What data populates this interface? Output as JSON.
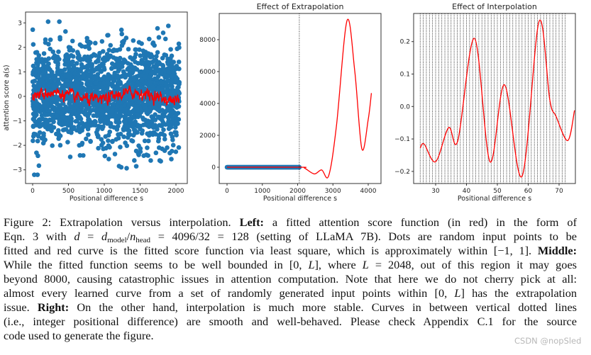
{
  "chart_data": [
    {
      "type": "scatter",
      "title": "",
      "xlabel": "Positional difference s",
      "ylabel": "attention score a(s)",
      "xlim": [
        -100,
        2150
      ],
      "ylim": [
        -3.5,
        3.3
      ],
      "xticks": [
        "0",
        "500",
        "1000",
        "1500",
        "2000"
      ],
      "yticks": [
        "−3",
        "−2",
        "−1",
        "0",
        "1",
        "2",
        "3"
      ],
      "grid": false,
      "series": [
        {
          "kind": "scatter",
          "color": "#1f77b4",
          "x_range": [
            0,
            2048
          ],
          "y_mean": 0,
          "y_std": 1,
          "y_extent": [
            -3.2,
            3.05
          ]
        },
        {
          "kind": "line",
          "color": "#ff0000",
          "x_range": [
            0,
            2048
          ],
          "y_extent": [
            -0.6,
            0.65
          ]
        }
      ]
    },
    {
      "type": "line",
      "title": "Effect of Extrapolation",
      "xlabel": "Positional difference s",
      "ylabel": "",
      "xlim": [
        -200,
        4200
      ],
      "ylim": [
        -1000,
        9800
      ],
      "xticks": [
        "0",
        "1000",
        "2000",
        "3000",
        "4000"
      ],
      "yticks": [
        "0",
        "2000",
        "4000",
        "6000",
        "8000"
      ],
      "grid": false,
      "vline": 2048,
      "series": [
        {
          "kind": "scatter",
          "color": "#1f77b4",
          "x_range": [
            0,
            2048
          ],
          "y": 0
        },
        {
          "kind": "line",
          "color": "#ff0000",
          "x": [
            0,
            2048,
            2200,
            2470,
            2680,
            2880,
            3100,
            3400,
            3620,
            3820,
            4000,
            4090
          ],
          "y": [
            0,
            0,
            -60,
            -420,
            -170,
            -530,
            2600,
            9200,
            6000,
            1150,
            3000,
            4650
          ]
        }
      ]
    },
    {
      "type": "line",
      "title": "Effect of Interpolation",
      "xlabel": "Positional difference s",
      "ylabel": "",
      "xlim": [
        23,
        77
      ],
      "ylim": [
        -0.24,
        0.28
      ],
      "xticks": [
        "30",
        "40",
        "50",
        "60",
        "70"
      ],
      "yticks": [
        "−0.2",
        "−0.1",
        "0.0",
        "0.1",
        "0.2"
      ],
      "grid": false,
      "vlines_integer_range": [
        25,
        72
      ],
      "series": [
        {
          "kind": "line",
          "color": "#ff0000",
          "x": [
            25,
            26.3,
            30,
            34.2,
            37.2,
            42.6,
            47.6,
            52.3,
            58,
            63.5,
            67,
            69,
            72.8,
            75
          ],
          "y": [
            -0.128,
            -0.116,
            -0.17,
            -0.065,
            -0.105,
            0.21,
            -0.17,
            0.067,
            -0.215,
            0.262,
            0.02,
            -0.03,
            -0.105,
            -0.012
          ]
        }
      ]
    }
  ],
  "caption": {
    "lines": [
      [
        {
          "t": "Figure 2:  Extrapolation versus interpolation.  ",
          "s": ""
        },
        {
          "t": "Left:",
          "s": "b"
        },
        {
          "t": " a fitted attention score function (in red) in the form of",
          "s": ""
        }
      ],
      [
        {
          "t": "Eqn. 3 with ",
          "s": ""
        },
        {
          "t": "d",
          "s": "i"
        },
        {
          "t": " = ",
          "s": ""
        },
        {
          "t": "d",
          "s": "i"
        },
        {
          "t": "model",
          "s": "sub"
        },
        {
          "t": "/",
          "s": ""
        },
        {
          "t": "n",
          "s": "i"
        },
        {
          "t": "head",
          "s": "sub"
        },
        {
          "t": " = 4096/32 = 128 (setting of LLaMA 7B). Dots are random input points to be",
          "s": ""
        }
      ],
      [
        {
          "t": "fitted and red curve is the fitted score function via least square, which is approximately within [−1, 1]. ",
          "s": ""
        },
        {
          "t": "Middle:",
          "s": "b"
        }
      ],
      [
        {
          "t": "While the fitted function seems to be well bounded in [0, ",
          "s": ""
        },
        {
          "t": "L",
          "s": "i"
        },
        {
          "t": "], where ",
          "s": ""
        },
        {
          "t": "L",
          "s": "i"
        },
        {
          "t": " = 2048, out of this region it may goes",
          "s": ""
        }
      ],
      [
        {
          "t": "beyond 8000, causing catastrophic issues in attention computation. Note that here we do not cherry pick at all:",
          "s": ""
        }
      ],
      [
        {
          "t": "almost every learned curve from a set of randomly generated input points within [0, ",
          "s": ""
        },
        {
          "t": "L",
          "s": "i"
        },
        {
          "t": "] has the extrapolation",
          "s": ""
        }
      ],
      [
        {
          "t": "issue.  ",
          "s": ""
        },
        {
          "t": "Right:",
          "s": "b"
        },
        {
          "t": " On the other hand, interpolation is much more stable.  Curves in between vertical dotted lines",
          "s": ""
        }
      ],
      [
        {
          "t": "(i.e., integer positional difference) are smooth and well-behaved.  Please check Appendix C.1 for the source",
          "s": ""
        }
      ],
      [
        {
          "t": "code used to generate the figure.",
          "s": ""
        }
      ]
    ]
  },
  "watermark": "CSDN @nopSled"
}
